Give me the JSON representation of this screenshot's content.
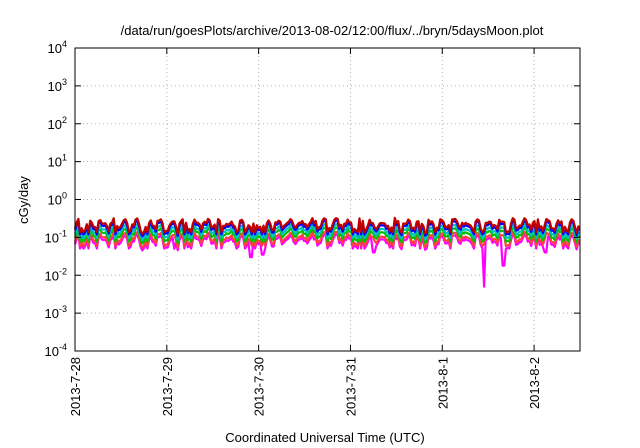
{
  "chart_data": {
    "type": "line",
    "title": "/data/run/goesPlots/archive/2013-08-02/12:00/flux/../bryn/5daysMoon.plot",
    "xlabel": "Coordinated Universal Time (UTC)",
    "ylabel": "cGy/day",
    "yscale": "log",
    "ylim": [
      0.0001,
      10000
    ],
    "y_ticks": [
      {
        "value": 0.0001,
        "base": "10",
        "exp": "-4"
      },
      {
        "value": 0.001,
        "base": "10",
        "exp": "-3"
      },
      {
        "value": 0.01,
        "base": "10",
        "exp": "-2"
      },
      {
        "value": 0.1,
        "base": "10",
        "exp": "-1"
      },
      {
        "value": 1,
        "base": "10",
        "exp": "0"
      },
      {
        "value": 10,
        "base": "10",
        "exp": "1"
      },
      {
        "value": 100,
        "base": "10",
        "exp": "2"
      },
      {
        "value": 1000,
        "base": "10",
        "exp": "3"
      },
      {
        "value": 10000,
        "base": "10",
        "exp": "4"
      }
    ],
    "xlim": [
      "2013-07-28 00:00",
      "2013-08-02 12:00"
    ],
    "x_ticks": [
      "2013-7-28",
      "2013-7-29",
      "2013-7-30",
      "2013-7-31",
      "2013-8-1",
      "2013-8-2"
    ],
    "grid": true,
    "legend": "none",
    "series": [
      {
        "color": "#ff00ff",
        "level": 0.085,
        "dips": [
          {
            "x": "2013-07-29 02:00",
            "y": 0.05
          },
          {
            "x": "2013-07-29 22:00",
            "y": 0.03
          },
          {
            "x": "2013-07-30 01:00",
            "y": 0.035
          },
          {
            "x": "2013-07-31 06:00",
            "y": 0.04
          },
          {
            "x": "2013-08-01 11:00",
            "y": 0.005
          },
          {
            "x": "2013-08-01 16:00",
            "y": 0.018
          },
          {
            "x": "2013-08-02 03:00",
            "y": 0.04
          }
        ]
      },
      {
        "color": "#ff4040",
        "level": 0.1
      },
      {
        "color": "#00c000",
        "level": 0.13
      },
      {
        "color": "#00c0c0",
        "level": 0.16
      },
      {
        "color": "#0000ff",
        "level": 0.2
      },
      {
        "color": "#c00000",
        "level": 0.23
      }
    ]
  }
}
